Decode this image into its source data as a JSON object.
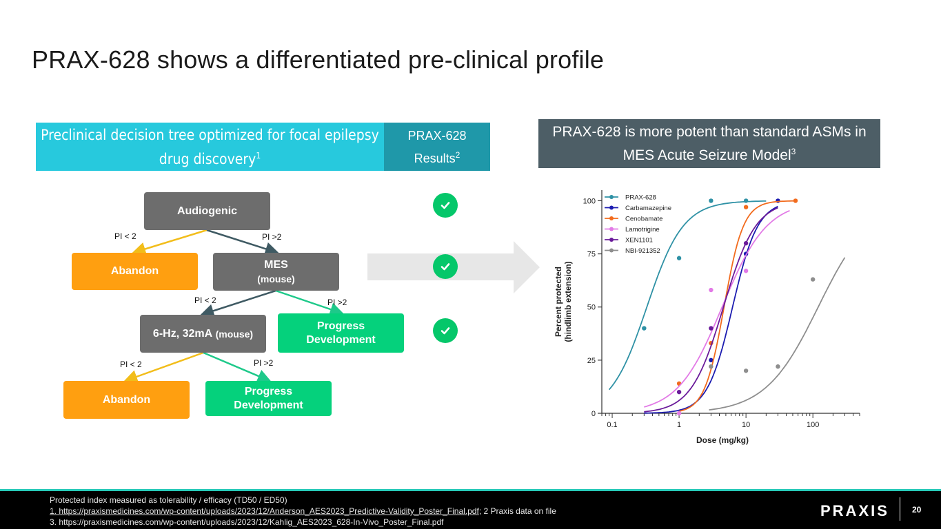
{
  "title": "PRAX-628 shows a differentiated pre-clinical profile",
  "left_header": {
    "line1": "Preclinical decision tree optimized for focal epilepsy",
    "line2": "drug discovery",
    "sup": "1"
  },
  "mid_header": {
    "line1": "PRAX-628",
    "line2": "Results",
    "sup": "2"
  },
  "right_header": {
    "line1": "PRAX-628 is more potent than standard ASMs in",
    "line2": "MES Acute Seizure Model",
    "sup": "3"
  },
  "tree": {
    "audiogenic": "Audiogenic",
    "abandon1": "Abandon",
    "mes": "MES",
    "mes_sub": "(mouse)",
    "hz": "6-Hz, 32mA",
    "hz_sub": "(mouse)",
    "progress1_l1": "Progress",
    "progress1_l2": "Development",
    "abandon2": "Abandon",
    "progress2_l1": "Progress",
    "progress2_l2": "Development",
    "pi_lt": "PI < 2",
    "pi_gt": "PI >2"
  },
  "colors": {
    "cyan": "#27c9dd",
    "teal": "#1f98a9",
    "slate": "#4d5e66",
    "gray": "#6d6d6d",
    "orange": "#ff9f10",
    "green": "#05d17c",
    "dark_line": "#3f5a63",
    "yellow_line": "#f2bd1a"
  },
  "chart_data": {
    "type": "line",
    "xscale": "log",
    "xlabel": "Dose (mg/kg)",
    "ylabel_line1": "Percent protected",
    "ylabel_line2": "(hindlimb extension)",
    "xlim": [
      0.07,
      500
    ],
    "ylim": [
      0,
      105
    ],
    "xticks": [
      0.1,
      1,
      10,
      100
    ],
    "xtick_labels": [
      "0.1",
      "1",
      "10",
      "100"
    ],
    "yticks": [
      0,
      25,
      50,
      75,
      100
    ],
    "ytick_labels": [
      "0",
      "25",
      "50",
      "75",
      "100"
    ],
    "legend_position": "top-left",
    "series": [
      {
        "name": "PRAX-628",
        "color": "#2e91a5",
        "ed50": 0.33,
        "hill": 1.6,
        "top": 100,
        "curve_range": [
          0.09,
          20
        ],
        "points": [
          [
            0.3,
            40
          ],
          [
            1,
            73
          ],
          [
            3,
            100
          ],
          [
            10,
            100
          ]
        ]
      },
      {
        "name": "Carbamazepine",
        "color": "#1c1cb0",
        "ed50": 6.3,
        "hill": 2.3,
        "top": 100,
        "curve_range": [
          0.3,
          30
        ],
        "points": [
          [
            3,
            25
          ],
          [
            10,
            75
          ],
          [
            30,
            100
          ]
        ]
      },
      {
        "name": "Cenobamate",
        "color": "#f26b1d",
        "ed50": 4.7,
        "hill": 3.0,
        "top": 100,
        "curve_range": [
          1,
          55
        ],
        "points": [
          [
            1,
            14
          ],
          [
            3,
            33
          ],
          [
            10,
            97
          ],
          [
            55,
            100
          ]
        ]
      },
      {
        "name": "Lamotrigine",
        "color": "#e27ae6",
        "ed50": 4.4,
        "hill": 1.3,
        "top": 100,
        "curve_range": [
          0.3,
          45
        ],
        "points": [
          [
            1,
            0
          ],
          [
            3,
            58
          ],
          [
            10,
            67
          ]
        ]
      },
      {
        "name": "XEN1101",
        "color": "#6a1b9a",
        "ed50": 4.6,
        "hill": 1.8,
        "top": 100,
        "curve_range": [
          0.3,
          30
        ],
        "points": [
          [
            1,
            10
          ],
          [
            3,
            40
          ],
          [
            10,
            80
          ]
        ]
      },
      {
        "name": "NBI-921352",
        "color": "#8e8e8e",
        "ed50": 120,
        "hill": 1.1,
        "top": 100,
        "curve_range": [
          2.8,
          300
        ],
        "points": [
          [
            3,
            22
          ],
          [
            10,
            20
          ],
          [
            30,
            22
          ],
          [
            100,
            63
          ]
        ]
      }
    ]
  },
  "footer": {
    "line1": "Protected index measured as tolerability / efficacy (TD50 / ED50)",
    "line2_link": "1. https://praxismedicines.com/wp-content/uploads/2023/12/Anderson_AES2023_Predictive-Validity_Poster_Final.pdf",
    "line2_rest": ";  2 Praxis data on file",
    "line3": "3. https://praxismedicines.com/wp-content/uploads/2023/12/Kahlig_AES2023_628-In-Vivo_Poster_Final.pdf",
    "logo": "PRAXIS",
    "page": "20"
  }
}
